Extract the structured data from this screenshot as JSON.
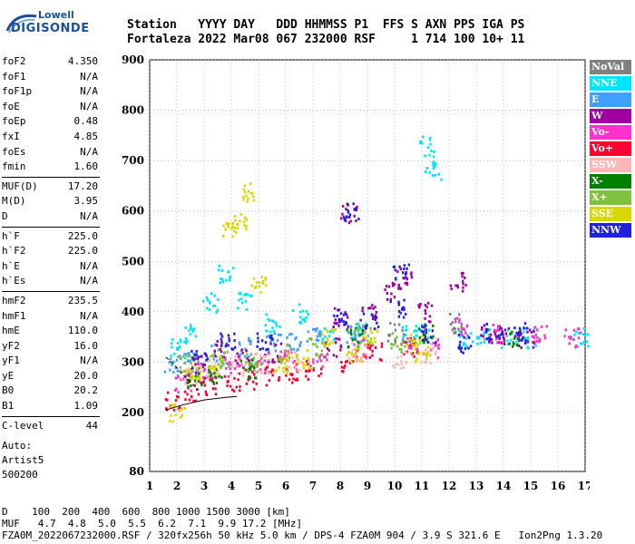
{
  "logo": {
    "line1": "Lowell",
    "line2": "DIGISONDE"
  },
  "header": {
    "labels": [
      "Station",
      "YYYY",
      "DAY",
      "DDD",
      "HHMMSS",
      "P1",
      "FFS",
      "S",
      "AXN",
      "PPS",
      "IGA",
      "PS"
    ],
    "values": [
      "Fortaleza",
      "2022",
      "Mar08",
      "067",
      "232000",
      "RSF",
      "",
      "1",
      "714",
      "100",
      "10+",
      "11"
    ]
  },
  "parameters": [
    [
      {
        "key": "foF2",
        "value": "4.350"
      },
      {
        "key": "foF1",
        "value": "N/A"
      },
      {
        "key": "foF1p",
        "value": "N/A"
      },
      {
        "key": "foE",
        "value": "N/A"
      },
      {
        "key": "foEp",
        "value": "0.48"
      },
      {
        "key": "fxI",
        "value": "4.85"
      },
      {
        "key": "foEs",
        "value": "N/A"
      },
      {
        "key": "fmin",
        "value": "1.60"
      }
    ],
    [
      {
        "key": "MUF(D)",
        "value": "17.20"
      },
      {
        "key": "M(D)",
        "value": "3.95"
      },
      {
        "key": "D",
        "value": "N/A"
      }
    ],
    [
      {
        "key": "h`F",
        "value": "225.0"
      },
      {
        "key": "h`F2",
        "value": "225.0"
      },
      {
        "key": "h`E",
        "value": "N/A"
      },
      {
        "key": "h`Es",
        "value": "N/A"
      }
    ],
    [
      {
        "key": "hmF2",
        "value": "235.5"
      },
      {
        "key": "hmF1",
        "value": "N/A"
      },
      {
        "key": "hmE",
        "value": "110.0"
      },
      {
        "key": "yF2",
        "value": "16.0"
      },
      {
        "key": "yF1",
        "value": "N/A"
      },
      {
        "key": "yE",
        "value": "20.0"
      },
      {
        "key": "B0",
        "value": "20.2"
      },
      {
        "key": "B1",
        "value": "1.09"
      }
    ],
    [
      {
        "key": "C-level",
        "value": "44"
      }
    ]
  ],
  "auto": {
    "line1": "Auto:",
    "line2": "Artist5",
    "line3": "500200"
  },
  "legend": [
    {
      "label": "NoVal",
      "color": "#808080"
    },
    {
      "label": "NNE",
      "color": "#00e5ff"
    },
    {
      "label": "E",
      "color": "#3fa0ff"
    },
    {
      "label": "W",
      "color": "#a000a0"
    },
    {
      "label": "Vo-",
      "color": "#ff33cc"
    },
    {
      "label": "Vo+",
      "color": "#ff0033"
    },
    {
      "label": "SSW",
      "color": "#ffb6b6"
    },
    {
      "label": "X-",
      "color": "#008000"
    },
    {
      "label": "X+",
      "color": "#80c040"
    },
    {
      "label": "SSE",
      "color": "#d8d800"
    },
    {
      "label": "NNW",
      "color": "#2020e0"
    }
  ],
  "chart_data": {
    "type": "scatter",
    "x_ticks": [
      "1",
      "2",
      "3",
      "4",
      "5",
      "6",
      "7",
      "8",
      "9",
      "10",
      "11",
      "12",
      "13",
      "14",
      "15",
      "16",
      "17"
    ],
    "y_ticks": [
      "80",
      "200",
      "300",
      "400",
      "500",
      "600",
      "700",
      "800",
      "900"
    ],
    "xlim": [
      1,
      17
    ],
    "y_scale": "piecewise: 80 at bottom, 200-900 linear",
    "grid": true,
    "series": [
      {
        "name": "NNE",
        "points": [
          [
            2.0,
            330
          ],
          [
            2.5,
            360
          ],
          [
            3.2,
            420
          ],
          [
            3.8,
            480
          ],
          [
            4.5,
            420
          ],
          [
            5.5,
            380
          ],
          [
            6.5,
            400
          ],
          [
            7.5,
            350
          ],
          [
            8.7,
            360
          ],
          [
            10.5,
            360
          ],
          [
            11.0,
            360
          ],
          [
            11.4,
            680
          ],
          [
            11.2,
            730
          ],
          [
            12.6,
            350
          ],
          [
            13.3,
            350
          ],
          [
            14.2,
            350
          ],
          [
            15.0,
            350
          ],
          [
            16.8,
            350
          ]
        ]
      },
      {
        "name": "E",
        "points": [
          [
            1.8,
            295
          ],
          [
            2.5,
            305
          ],
          [
            3.5,
            320
          ],
          [
            4.5,
            330
          ],
          [
            5.5,
            340
          ],
          [
            6.3,
            345
          ],
          [
            7.0,
            355
          ],
          [
            8.5,
            355
          ]
        ]
      },
      {
        "name": "W",
        "points": [
          [
            2.8,
            300
          ],
          [
            3.6,
            330
          ],
          [
            4.4,
            310
          ],
          [
            5.5,
            320
          ],
          [
            7.7,
            330
          ],
          [
            8.0,
            390
          ],
          [
            8.3,
            595
          ],
          [
            9.0,
            400
          ],
          [
            9.9,
            440
          ],
          [
            10.3,
            470
          ],
          [
            11.1,
            400
          ],
          [
            12.3,
            460
          ],
          [
            13.4,
            360
          ],
          [
            14.1,
            355
          ],
          [
            14.8,
            350
          ]
        ]
      },
      {
        "name": "Vo-",
        "points": [
          [
            2.2,
            260
          ],
          [
            3.0,
            280
          ],
          [
            4.0,
            290
          ],
          [
            5.0,
            300
          ],
          [
            6.0,
            310
          ],
          [
            7.2,
            305
          ],
          [
            8.8,
            330
          ],
          [
            10.6,
            330
          ],
          [
            11.3,
            330
          ],
          [
            12.4,
            370
          ],
          [
            13.6,
            360
          ],
          [
            15.3,
            355
          ],
          [
            16.5,
            350
          ]
        ]
      },
      {
        "name": "Vo+",
        "points": [
          [
            1.8,
            225
          ],
          [
            2.5,
            245
          ],
          [
            3.2,
            255
          ],
          [
            4.0,
            262
          ],
          [
            4.7,
            268
          ],
          [
            5.5,
            275
          ],
          [
            6.2,
            280
          ],
          [
            7.0,
            285
          ],
          [
            8.3,
            300
          ],
          [
            9.2,
            320
          ],
          [
            10.5,
            330
          ]
        ]
      },
      {
        "name": "SSW",
        "points": [
          [
            2.4,
            275
          ],
          [
            3.3,
            285
          ],
          [
            4.2,
            295
          ],
          [
            5.1,
            300
          ],
          [
            6.3,
            305
          ],
          [
            8.6,
            320
          ],
          [
            10.2,
            310
          ],
          [
            11.2,
            320
          ]
        ]
      },
      {
        "name": "X-",
        "points": [
          [
            2.6,
            270
          ],
          [
            3.4,
            280
          ],
          [
            4.6,
            290
          ],
          [
            8.5,
            350
          ],
          [
            11.1,
            360
          ],
          [
            14.4,
            350
          ]
        ]
      },
      {
        "name": "X+",
        "points": [
          [
            2.3,
            300
          ],
          [
            3.6,
            310
          ],
          [
            4.8,
            300
          ],
          [
            6.0,
            320
          ],
          [
            7.1,
            330
          ],
          [
            8.8,
            360
          ],
          [
            10.1,
            340
          ]
        ]
      },
      {
        "name": "SSE",
        "points": [
          [
            2.0,
            200
          ],
          [
            2.6,
            285
          ],
          [
            3.4,
            300
          ],
          [
            3.9,
            560
          ],
          [
            4.3,
            580
          ],
          [
            4.6,
            640
          ],
          [
            5.0,
            460
          ],
          [
            5.8,
            300
          ],
          [
            6.6,
            310
          ],
          [
            7.6,
            350
          ],
          [
            8.5,
            320
          ],
          [
            9.1,
            350
          ],
          [
            10.7,
            340
          ],
          [
            11.0,
            320
          ]
        ]
      },
      {
        "name": "NNW",
        "points": [
          [
            2.8,
            310
          ],
          [
            3.8,
            340
          ],
          [
            5.2,
            340
          ],
          [
            7.9,
            390
          ],
          [
            8.4,
            600
          ],
          [
            9.1,
            380
          ],
          [
            10.1,
            410
          ],
          [
            10.2,
            480
          ],
          [
            11.2,
            360
          ],
          [
            12.6,
            340
          ],
          [
            13.6,
            360
          ],
          [
            14.6,
            360
          ]
        ]
      },
      {
        "name": "NoVal",
        "points": [
          [
            10.0,
            360
          ],
          [
            12.2,
            380
          ]
        ]
      }
    ],
    "traces": [
      {
        "name": "virtual-height-trace",
        "points": [
          [
            1.6,
            205
          ],
          [
            2.2,
            215
          ],
          [
            3.0,
            225
          ],
          [
            3.8,
            230
          ],
          [
            4.2,
            232
          ]
        ]
      },
      {
        "name": "o-trace-dashed",
        "points": [
          [
            1.6,
            310
          ],
          [
            1.9,
            295
          ],
          [
            2.4,
            265
          ],
          [
            2.8,
            245
          ]
        ]
      }
    ]
  },
  "footer": {
    "line1": "D    100  200  400  600  800 1000 1500 3000 [km]",
    "line2": "MUF   4.7  4.8  5.0  5.5  6.2  7.1  9.9 17.2 [MHz]",
    "line3": "FZA0M_2022067232000.RSF / 320fx256h 50 kHz 5.0 km / DPS-4 FZA0M 904 / 3.9 S 321.6 E   Ion2Png 1.3.20"
  }
}
